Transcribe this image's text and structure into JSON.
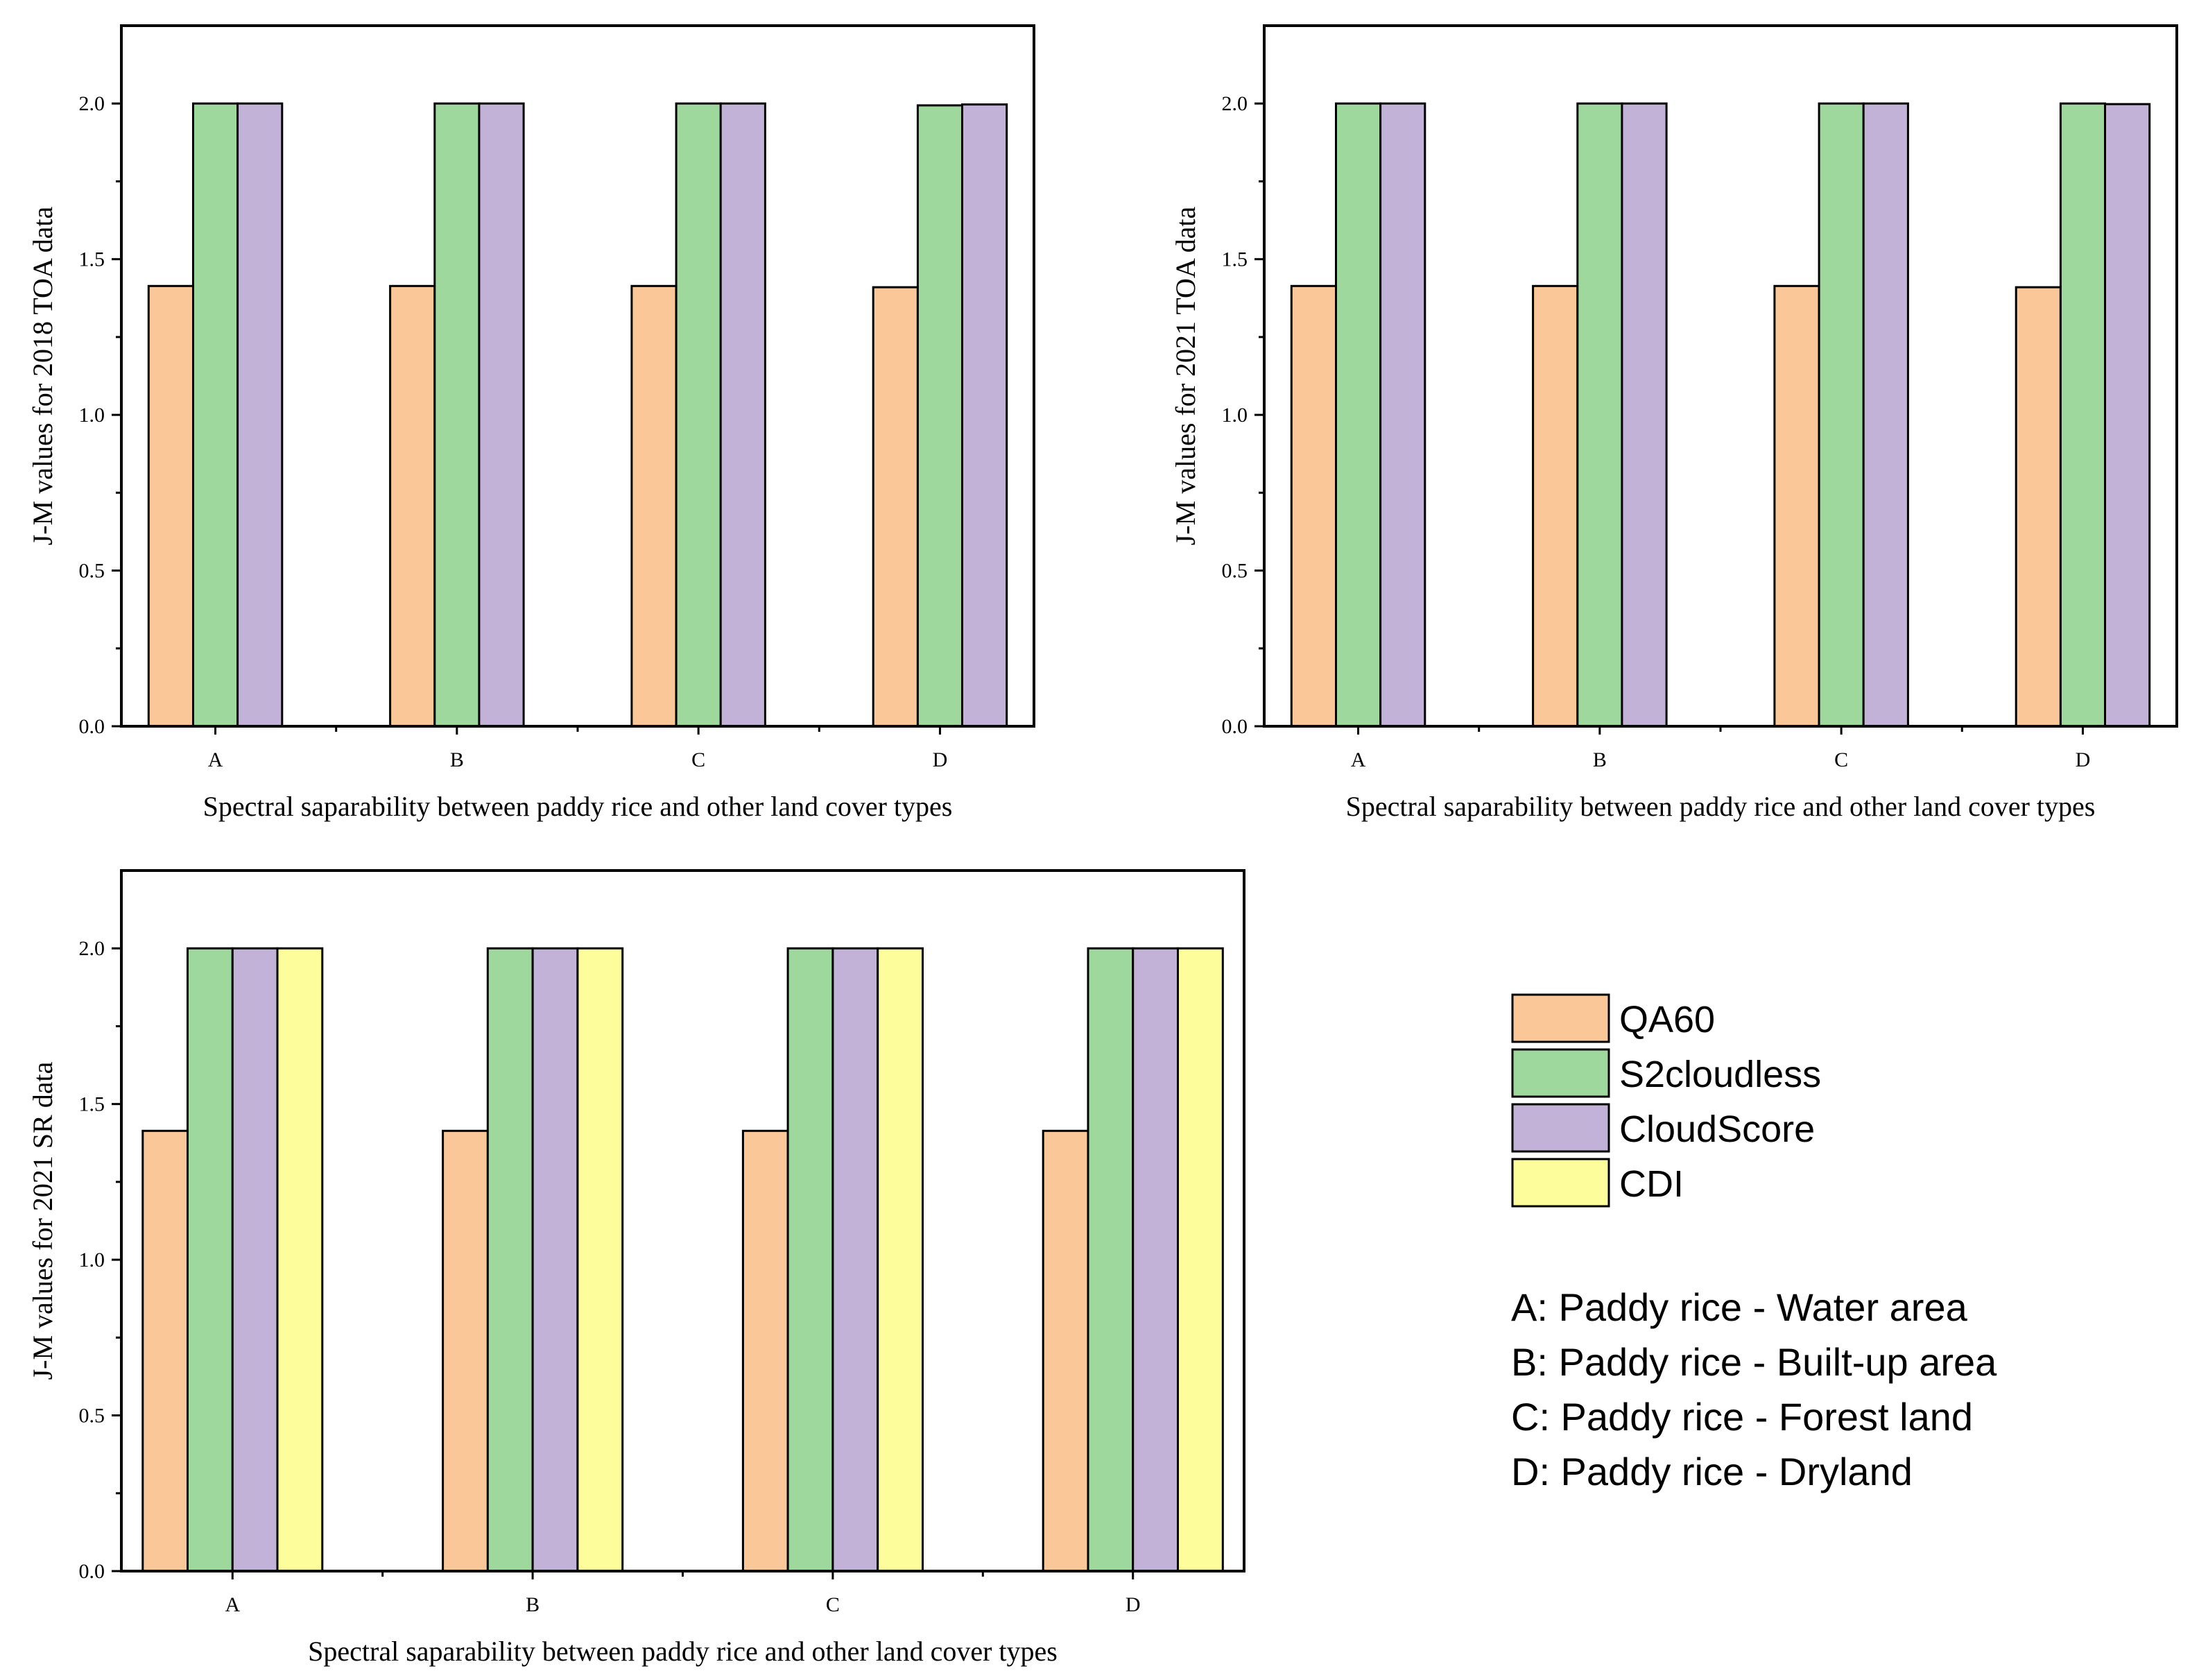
{
  "chart_data": [
    {
      "type": "bar",
      "id": "toa-2018",
      "categories": [
        "A",
        "B",
        "C",
        "D"
      ],
      "series": [
        {
          "name": "QA60",
          "values": [
            1.414,
            1.414,
            1.414,
            1.41
          ]
        },
        {
          "name": "S2cloudless",
          "values": [
            2.0,
            2.0,
            2.0,
            1.994
          ]
        },
        {
          "name": "CloudScore",
          "values": [
            2.0,
            2.0,
            2.0,
            1.997
          ]
        }
      ],
      "xlabel": "Spectral saparability between paddy rice and other land cover types",
      "ylabel": "J-M values for 2018 TOA data",
      "ylim": [
        0,
        2.25
      ],
      "yticks": [
        "0.0",
        "0.5",
        "1.0",
        "1.5",
        "2.0"
      ]
    },
    {
      "type": "bar",
      "id": "toa-2021",
      "categories": [
        "A",
        "B",
        "C",
        "D"
      ],
      "series": [
        {
          "name": "QA60",
          "values": [
            1.414,
            1.414,
            1.414,
            1.41
          ]
        },
        {
          "name": "S2cloudless",
          "values": [
            2.0,
            2.0,
            2.0,
            2.0
          ]
        },
        {
          "name": "CloudScore",
          "values": [
            2.0,
            2.0,
            2.0,
            1.998
          ]
        }
      ],
      "xlabel": "Spectral saparability between paddy rice and other land cover types",
      "ylabel": "J-M values for 2021 TOA data",
      "ylim": [
        0,
        2.25
      ],
      "yticks": [
        "0.0",
        "0.5",
        "1.0",
        "1.5",
        "2.0"
      ]
    },
    {
      "type": "bar",
      "id": "sr-2021",
      "categories": [
        "A",
        "B",
        "C",
        "D"
      ],
      "series": [
        {
          "name": "QA60",
          "values": [
            1.414,
            1.414,
            1.414,
            1.414
          ]
        },
        {
          "name": "S2cloudless",
          "values": [
            2.0,
            2.0,
            2.0,
            2.0
          ]
        },
        {
          "name": "CloudScore",
          "values": [
            2.0,
            2.0,
            2.0,
            2.0
          ]
        },
        {
          "name": "CDI",
          "values": [
            2.0,
            2.0,
            2.0,
            2.0
          ]
        }
      ],
      "xlabel": "Spectral saparability between paddy rice and other land cover types",
      "ylabel": "J-M values for 2021 SR data",
      "ylim": [
        0,
        2.25
      ],
      "yticks": [
        "0.0",
        "0.5",
        "1.0",
        "1.5",
        "2.0"
      ]
    }
  ],
  "legend": [
    {
      "name": "QA60",
      "color": "#fac898"
    },
    {
      "name": "S2cloudless",
      "color": "#9fd89c"
    },
    {
      "name": "CloudScore",
      "color": "#c2b2d8"
    },
    {
      "name": "CDI",
      "color": "#fdfd9c"
    }
  ],
  "category_key": [
    "A: Paddy rice - Water area",
    "B: Paddy rice - Built-up area",
    "C: Paddy rice - Forest land",
    "D: Paddy rice - Dryland"
  ]
}
